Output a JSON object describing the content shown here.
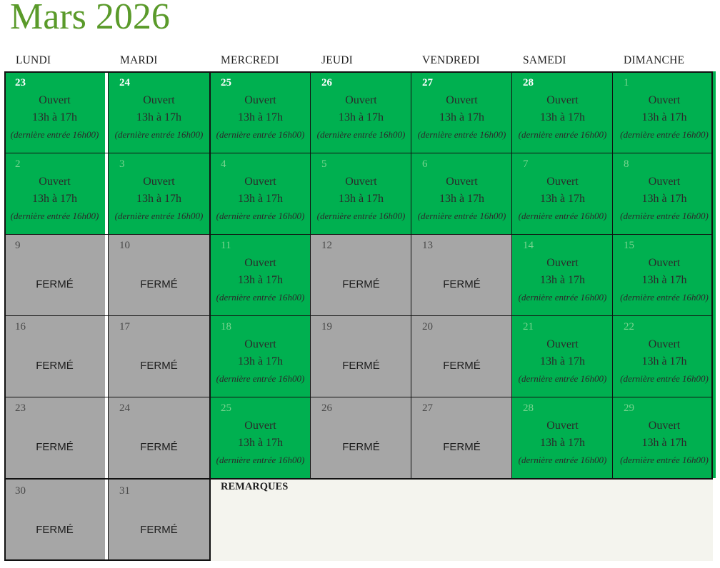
{
  "title": "Mars 2026",
  "weekdays": [
    "LUNDI",
    "MARDI",
    "MERCREDI",
    "JEUDI",
    "VENDREDI",
    "SAMEDI",
    "DIMANCHE"
  ],
  "open_text": {
    "status": "Ouvert",
    "hours": "13h à 17h",
    "note": "(dernière entrée 16h00)"
  },
  "closed_text": "FERMÉ",
  "remarks_label": "REMARQUES",
  "colors": {
    "open": "#00b050",
    "closed": "#a6a6a6",
    "title": "#5a9a2a"
  },
  "weeks": [
    [
      {
        "day": "23",
        "status": "open",
        "num_style": "white"
      },
      {
        "day": "24",
        "status": "open",
        "num_style": "white"
      },
      {
        "day": "25",
        "status": "open",
        "num_style": "white"
      },
      {
        "day": "26",
        "status": "open",
        "num_style": "white"
      },
      {
        "day": "27",
        "status": "open",
        "num_style": "white"
      },
      {
        "day": "28",
        "status": "open",
        "num_style": "white"
      },
      {
        "day": "1",
        "status": "open",
        "num_style": "dim"
      }
    ],
    [
      {
        "day": "2",
        "status": "open",
        "num_style": "dim"
      },
      {
        "day": "3",
        "status": "open",
        "num_style": "dim"
      },
      {
        "day": "4",
        "status": "open",
        "num_style": "dim"
      },
      {
        "day": "5",
        "status": "open",
        "num_style": "dim"
      },
      {
        "day": "6",
        "status": "open",
        "num_style": "dim"
      },
      {
        "day": "7",
        "status": "open",
        "num_style": "dim"
      },
      {
        "day": "8",
        "status": "open",
        "num_style": "dim"
      }
    ],
    [
      {
        "day": "9",
        "status": "closed"
      },
      {
        "day": "10",
        "status": "closed"
      },
      {
        "day": "11",
        "status": "open",
        "num_style": "dim"
      },
      {
        "day": "12",
        "status": "closed"
      },
      {
        "day": "13",
        "status": "closed"
      },
      {
        "day": "14",
        "status": "open",
        "num_style": "dim"
      },
      {
        "day": "15",
        "status": "open",
        "num_style": "dim"
      }
    ],
    [
      {
        "day": "16",
        "status": "closed"
      },
      {
        "day": "17",
        "status": "closed"
      },
      {
        "day": "18",
        "status": "open",
        "num_style": "dim"
      },
      {
        "day": "19",
        "status": "closed"
      },
      {
        "day": "20",
        "status": "closed"
      },
      {
        "day": "21",
        "status": "open",
        "num_style": "dim"
      },
      {
        "day": "22",
        "status": "open",
        "num_style": "dim"
      }
    ],
    [
      {
        "day": "23",
        "status": "closed"
      },
      {
        "day": "24",
        "status": "closed"
      },
      {
        "day": "25",
        "status": "open",
        "num_style": "dim"
      },
      {
        "day": "26",
        "status": "closed"
      },
      {
        "day": "27",
        "status": "closed"
      },
      {
        "day": "28",
        "status": "open",
        "num_style": "dim"
      },
      {
        "day": "29",
        "status": "open",
        "num_style": "dim"
      }
    ],
    [
      {
        "day": "30",
        "status": "closed"
      },
      {
        "day": "31",
        "status": "closed"
      }
    ]
  ]
}
